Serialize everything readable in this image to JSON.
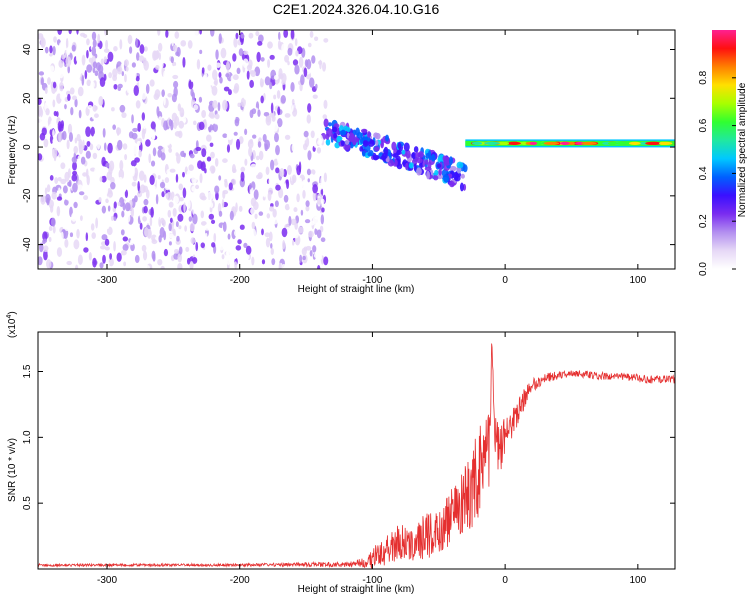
{
  "page_title": "C2E1.2024.326.04.10.G16",
  "colors": {
    "snr_line": "#e53030",
    "colorbar": [
      "#ffffff",
      "#e6d8f6",
      "#b38ff0",
      "#7a2cf0",
      "#3a10ff",
      "#0060ff",
      "#00c8ff",
      "#20e8a0",
      "#30ff30",
      "#a8ff00",
      "#ffe000",
      "#ff8000",
      "#ff1010",
      "#ff2090"
    ]
  },
  "chart_data": [
    {
      "type": "heatmap",
      "title": "C2E1.2024.326.04.10.G16",
      "xlabel": "Height of straight line (km)",
      "ylabel": "Frequency (Hz)",
      "xlim": [
        -352,
        128
      ],
      "ylim": [
        -50,
        48
      ],
      "x_ticks": [
        -300,
        -200,
        -100,
        0,
        100
      ],
      "x_tick_labels": [
        "-300",
        "-200",
        "-100",
        "0",
        "100"
      ],
      "y_ticks": [
        -40,
        -20,
        0,
        20,
        40
      ],
      "y_tick_labels": [
        "-40",
        "-20",
        "0",
        "20",
        "40"
      ],
      "colorbar": {
        "label": "Normalized spectral amplitude",
        "range": [
          0,
          1
        ],
        "ticks": [
          0.0,
          0.2,
          0.4,
          0.6,
          0.8
        ],
        "tick_labels": [
          "0.0",
          "0.2",
          "0.4",
          "0.6",
          "0.8"
        ]
      },
      "regions": [
        {
          "name": "noise",
          "x": [
            -352,
            -135
          ],
          "freq": [
            -50,
            48
          ],
          "amplitude": [
            0.02,
            0.18
          ]
        },
        {
          "name": "signal-scatter",
          "x": [
            -135,
            -30
          ],
          "freq_start": 7,
          "freq_end": -12,
          "amplitude": [
            0.15,
            0.45
          ]
        },
        {
          "name": "signal-track",
          "x": [
            -30,
            128
          ],
          "freq": 1.5,
          "amplitude": [
            0.5,
            1.0
          ]
        }
      ],
      "grid": false
    },
    {
      "type": "line",
      "xlabel": "Height of straight line (km)",
      "ylabel": "SNR (10 * v/v)",
      "y_multiplier": "(x10",
      "y_multiplier_exp": "4",
      "y_multiplier_close": ")",
      "xlim": [
        -352,
        128
      ],
      "ylim": [
        0,
        1.8
      ],
      "x_ticks": [
        -300,
        -200,
        -100,
        0,
        100
      ],
      "x_tick_labels": [
        "-300",
        "-200",
        "-100",
        "0",
        "100"
      ],
      "y_ticks": [
        0.5,
        1.0,
        1.5
      ],
      "y_tick_labels": [
        "0.5",
        "1.0",
        "1.5"
      ],
      "series": [
        {
          "x": [
            -352,
            -300,
            -200,
            -120,
            -105,
            -100,
            -90,
            -80,
            -70,
            -60,
            -50,
            -40,
            -35,
            -30,
            -25,
            -20,
            -15,
            -12,
            -10,
            -8,
            -5,
            0,
            5,
            10,
            15,
            20,
            25,
            30,
            40,
            50,
            60,
            70,
            80,
            90,
            100,
            110,
            120,
            128
          ],
          "values": [
            0.03,
            0.03,
            0.03,
            0.035,
            0.05,
            0.08,
            0.15,
            0.2,
            0.18,
            0.25,
            0.3,
            0.4,
            0.45,
            0.55,
            0.6,
            0.75,
            0.85,
            0.9,
            1.7,
            0.95,
            0.9,
            1.0,
            1.1,
            1.2,
            1.3,
            1.38,
            1.42,
            1.45,
            1.47,
            1.48,
            1.48,
            1.47,
            1.46,
            1.46,
            1.45,
            1.44,
            1.44,
            1.44
          ],
          "noise": [
            0.01,
            0.01,
            0.01,
            0.02,
            0.04,
            0.08,
            0.12,
            0.15,
            0.12,
            0.18,
            0.2,
            0.22,
            0.25,
            0.25,
            0.3,
            0.35,
            0.35,
            0.3,
            0.1,
            0.25,
            0.25,
            0.15,
            0.12,
            0.1,
            0.08,
            0.06,
            0.05,
            0.04,
            0.03,
            0.03,
            0.03,
            0.03,
            0.03,
            0.03,
            0.03,
            0.03,
            0.03,
            0.03
          ]
        }
      ],
      "grid": false
    }
  ]
}
